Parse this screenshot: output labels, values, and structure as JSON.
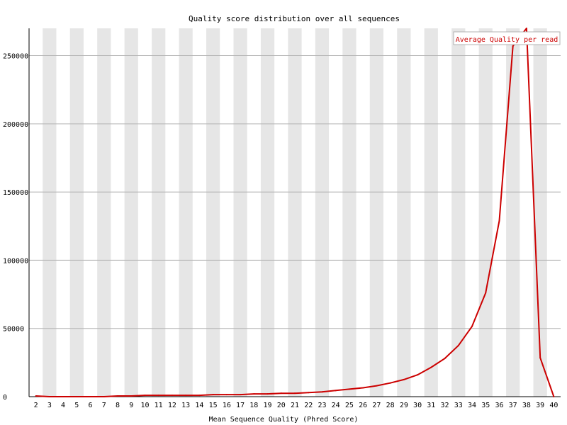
{
  "chart_data": {
    "type": "line",
    "title": "Quality score distribution over all sequences",
    "xlabel": "Mean Sequence Quality (Phred Score)",
    "ylabel": "",
    "x_categories": [
      "2",
      "3",
      "4",
      "5",
      "6",
      "7",
      "8",
      "9",
      "10",
      "11",
      "12",
      "13",
      "14",
      "15",
      "16",
      "17",
      "18",
      "19",
      "20",
      "21",
      "22",
      "23",
      "24",
      "25",
      "26",
      "27",
      "28",
      "29",
      "30",
      "31",
      "32",
      "33",
      "34",
      "35",
      "36",
      "37",
      "38",
      "39",
      "40"
    ],
    "y_ticks": [
      "0",
      "50000",
      "100000",
      "150000",
      "200000",
      "250000"
    ],
    "ylim": [
      0,
      270000
    ],
    "series": [
      {
        "name": "Average Quality per read",
        "color": "#cc0000",
        "values": [
          500,
          0,
          0,
          0,
          0,
          0,
          500,
          500,
          1000,
          1000,
          1000,
          1000,
          1000,
          1500,
          1500,
          1500,
          2000,
          2000,
          2500,
          2500,
          3000,
          3500,
          4500,
          5500,
          6500,
          8000,
          10000,
          12500,
          16000,
          21500,
          28000,
          37500,
          51500,
          76000,
          129000,
          257000,
          270000,
          28500,
          0
        ]
      }
    ],
    "legend": {
      "placement": "top-right"
    },
    "grid": {
      "horizontal": true,
      "alternating_column_shading": true
    },
    "colors": {
      "shade": "#e6e6e6",
      "grid": "#b3b3b3",
      "axis": "#000000"
    }
  }
}
